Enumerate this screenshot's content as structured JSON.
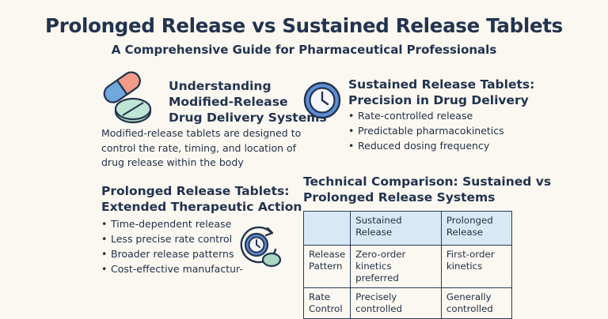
{
  "title": "Prolonged Release vs Sustained Release Tablets",
  "subtitle": "A Comprehensive Guide for Pharmaceutical Professionals",
  "understanding": {
    "heading_lines": [
      "Understanding",
      "Modified-Release",
      "Drug Delivery Systems"
    ],
    "body_lines": [
      "Modified-release tablets are designed to",
      "control the rate, timing, and location of",
      "drug release within the body"
    ]
  },
  "sustained": {
    "heading_lines": [
      "Sustained Release Tablets:",
      "Precision in Drug Delivery"
    ],
    "bullets": [
      "Rate-controlled release",
      "Predictable pharmacokinetics",
      "Reduced dosing frequency"
    ]
  },
  "prolonged": {
    "heading_lines": [
      "Prolonged Release Tablets:",
      "Extended Therapeutic Action"
    ],
    "bullets": [
      "Time-dependent release",
      "Less precise rate control",
      "Broader release patterns",
      "Cost-effective manufactur-"
    ]
  },
  "comparison": {
    "heading_lines": [
      "Technical Comparison: Sustained vs",
      "Prolonged Release Systems"
    ],
    "columns": [
      "",
      "Sustained Release",
      "Prolonged Release"
    ],
    "rows": [
      {
        "label": "Release Pattern",
        "sustained": "Zero-order kinetics preferred",
        "prolonged": "First-order kinetics"
      },
      {
        "label": "Rate Control",
        "sustained": "Precisely controlled",
        "prolonged": "Generally controlled"
      }
    ]
  },
  "bullet_char": "•",
  "icons": {
    "pill": "capsule-and-tablet-icon",
    "clock": "clock-icon",
    "timer": "timer-pill-icon"
  },
  "colors": {
    "capsule_blue": "#6fa8dc",
    "capsule_coral": "#f29b86",
    "tablet_green": "#a8d8c4",
    "clock_blue": "#5b8ed6",
    "table_header": "#d8e9f5"
  }
}
